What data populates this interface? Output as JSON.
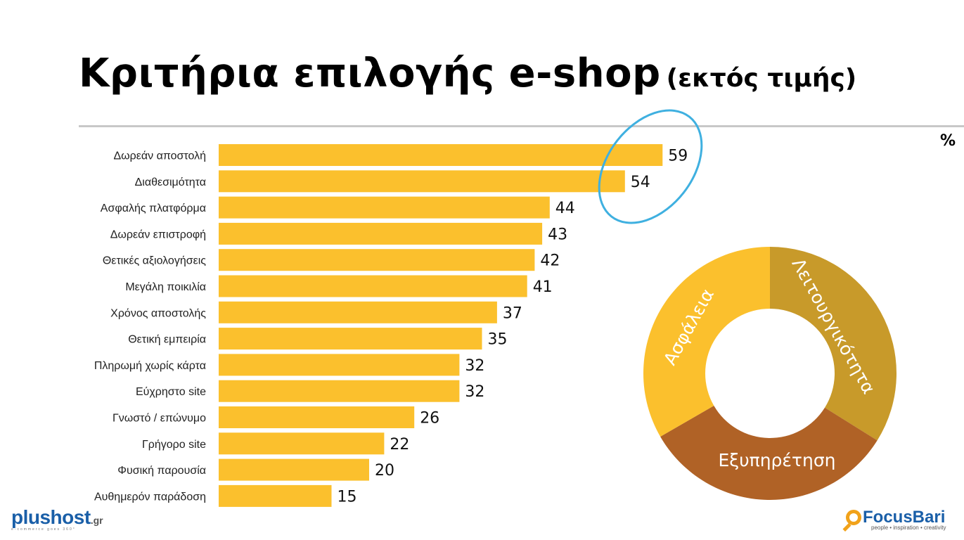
{
  "title": {
    "main": "Κριτήρια επιλογής e-shop",
    "sub": "(εκτός τιμής)"
  },
  "unit_label": "%",
  "chart_data": {
    "type": "bar",
    "orientation": "horizontal",
    "categories": [
      "Δωρεάν αποστολή",
      "Διαθεσιμότητα",
      "Ασφαλής πλατφόρμα",
      "Δωρεάν επιστροφή",
      "Θετικές αξιολογήσεις",
      "Μεγάλη ποικιλία",
      "Χρόνος αποστολής",
      "Θετική εμπειρία",
      "Πληρωμή χωρίς κάρτα",
      "Εύχρηστο site",
      "Γνωστό / επώνυμο",
      "Γρήγορο site",
      "Φυσική παρουσία",
      "Αυθημερόν παράδοση"
    ],
    "values": [
      59,
      54,
      44,
      43,
      42,
      41,
      37,
      35,
      32,
      32,
      26,
      22,
      20,
      15
    ],
    "bar_color": "#fbc02d",
    "highlight": {
      "categories": [
        "Δωρεάν αποστολή",
        "Διαθεσιμότητα"
      ],
      "color": "#3fb0e0"
    }
  },
  "donut": {
    "segments": [
      {
        "label": "Λειτουργικότητα",
        "color": "#c89a2a"
      },
      {
        "label": "Εξυπηρέτηση",
        "color": "#b06226"
      },
      {
        "label": "Ασφάλεια",
        "color": "#fbc02d"
      }
    ]
  },
  "logos": {
    "left": {
      "brand_a": "plush",
      "brand_b": "st",
      "tld": ".gr",
      "tagline": "e-commerce goes 360°"
    },
    "right": {
      "name": "FocusBari",
      "tagline": "people • inspiration • creativity"
    }
  }
}
